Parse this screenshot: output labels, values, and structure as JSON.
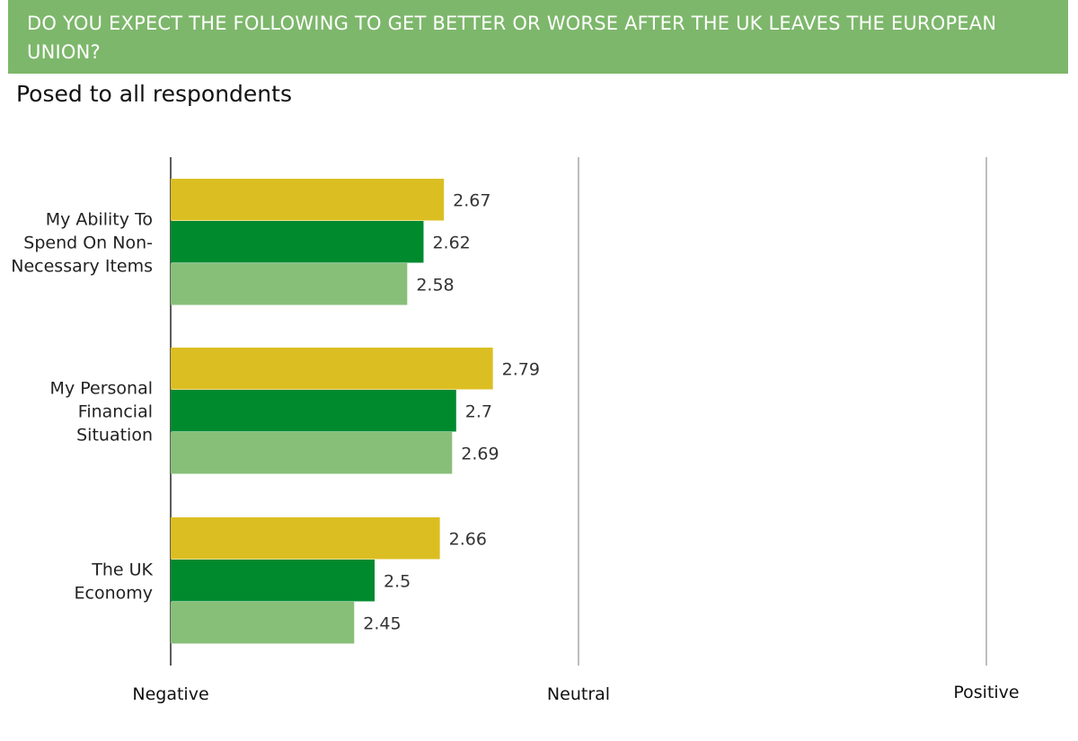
{
  "header": {
    "title": "DO YOU EXPECT THE FOLLOWING TO GET BETTER OR WORSE AFTER THE UK LEAVES THE EUROPEAN UNION?",
    "subtitle": "Posed to all respondents"
  },
  "chart_data": {
    "type": "bar",
    "orientation": "horizontal",
    "categories": [
      [
        "My Ability To",
        "Spend On Non-",
        "Necessary Items"
      ],
      [
        "My Personal",
        "Financial",
        "Situation"
      ],
      [
        "The UK",
        "Economy"
      ]
    ],
    "series": [
      {
        "color": "#dbbe22",
        "values": [
          2.67,
          2.79,
          2.66
        ]
      },
      {
        "color": "#008a2e",
        "values": [
          2.62,
          2.7,
          2.5
        ]
      },
      {
        "color": "#88bf78",
        "values": [
          2.58,
          2.69,
          2.45
        ]
      }
    ],
    "value_labels": [
      [
        "2.67",
        "2.79",
        "2.66"
      ],
      [
        "2.62",
        "2.7",
        "2.5"
      ],
      [
        "2.58",
        "2.69",
        "2.45"
      ]
    ],
    "xlim": [
      2,
      4
    ],
    "x_ticks": [
      {
        "value": 2,
        "label": "Negative"
      },
      {
        "value": 3,
        "label": "Neutral"
      },
      {
        "value": 4,
        "label": "Positive"
      }
    ],
    "gridlines": "vertical at tick values"
  }
}
